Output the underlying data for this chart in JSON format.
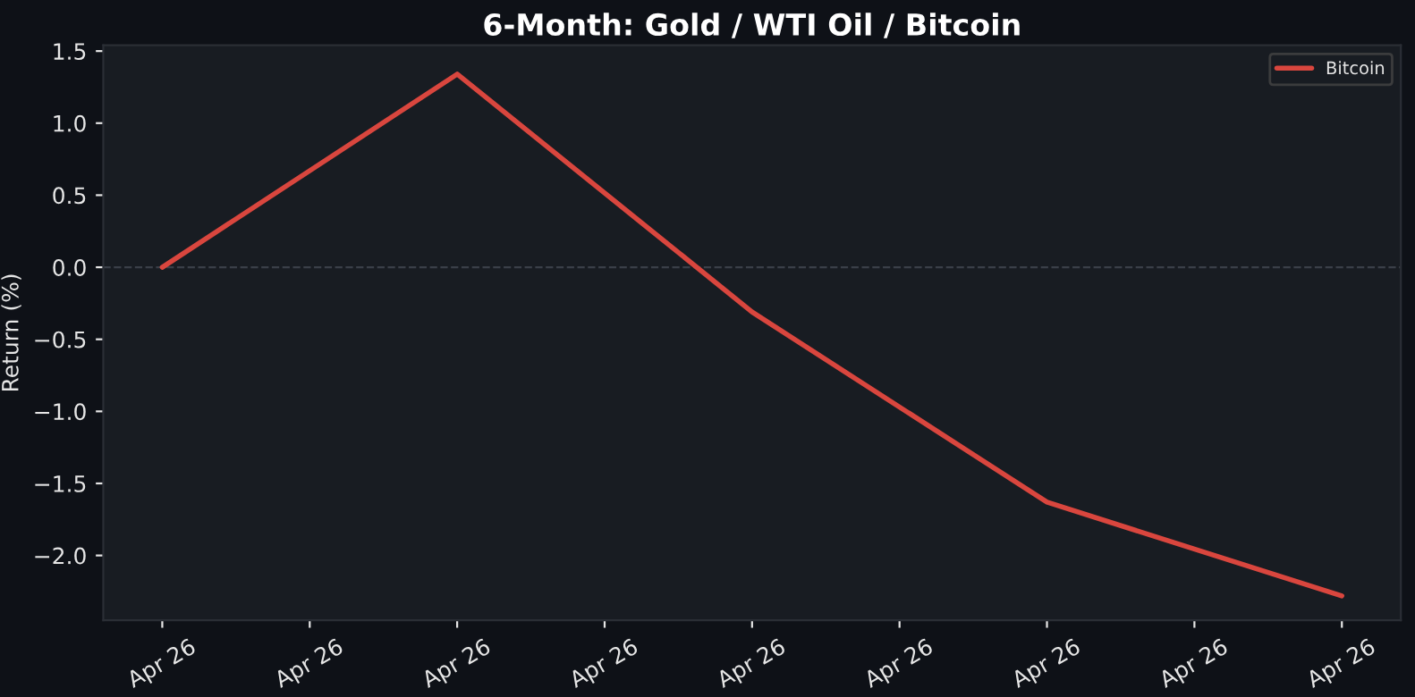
{
  "chart_data": {
    "type": "line",
    "title": "6-Month: Gold / WTI Oil / Bitcoin",
    "ylabel": "Return (%)",
    "categories": [
      "Apr 26",
      "Apr 26",
      "Apr 26",
      "Apr 26",
      "Apr 26",
      "Apr 26",
      "Apr 26",
      "Apr 26",
      "Apr 26"
    ],
    "series": [
      {
        "name": "Bitcoin",
        "color": "#d9463e",
        "values": [
          0.0,
          null,
          1.34,
          null,
          -0.31,
          null,
          -1.63,
          null,
          -2.28
        ]
      }
    ],
    "ylim": [
      -2.45,
      1.54
    ],
    "yticks": [
      {
        "value": -2.0,
        "label": "−2.0"
      },
      {
        "value": -1.5,
        "label": "−1.5"
      },
      {
        "value": -1.0,
        "label": "−1.0"
      },
      {
        "value": -0.5,
        "label": "−0.5"
      },
      {
        "value": 0.0,
        "label": "0.0"
      },
      {
        "value": 0.5,
        "label": "0.5"
      },
      {
        "value": 1.0,
        "label": "1.0"
      },
      {
        "value": 1.5,
        "label": "1.5"
      }
    ],
    "ref_lines": [
      {
        "axis": "y",
        "value": 0,
        "color": "#3a3f48",
        "line_style": "dashed"
      }
    ],
    "legend": "top right",
    "grid": false,
    "marker": "none",
    "line_style": "solid"
  }
}
